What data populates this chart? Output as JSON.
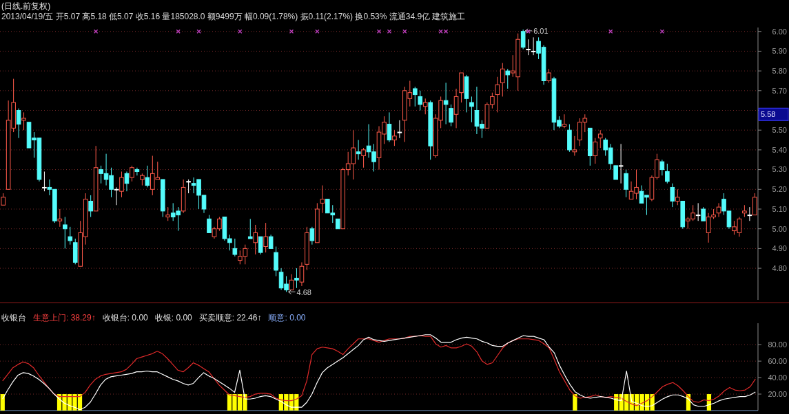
{
  "chart_data": [
    {
      "type": "candlestick",
      "title": "(日线.前复权)",
      "annotations": [
        "2013/04/19/五 开5.07 高5.18 低5.07 收5.16 量185028.0 额9499万 幅0.09(1.78%) 振0.11(2.17%) 换0.53% 流通34.9亿 建筑施工",
        "6.01",
        "4.68",
        "5.58"
      ],
      "categories": [
        null,
        null,
        null,
        null,
        null,
        null,
        null,
        null,
        null,
        null,
        null,
        null,
        null,
        null,
        null,
        null,
        null,
        null,
        null,
        null,
        null,
        null,
        null,
        null,
        null,
        null,
        null,
        null,
        null,
        null,
        null,
        null,
        null,
        null,
        null,
        null,
        null,
        null,
        null,
        null,
        null,
        null,
        null,
        null,
        null,
        null,
        null,
        null,
        null,
        null,
        null,
        null,
        null,
        null,
        null,
        null,
        null,
        null,
        null,
        null,
        null,
        null,
        null,
        null,
        null,
        null,
        null,
        null,
        null,
        null,
        null,
        null,
        null,
        null,
        null,
        null,
        null,
        null,
        null,
        null,
        null,
        null,
        null,
        null,
        null,
        null,
        null,
        null,
        null,
        null,
        null,
        null,
        null,
        null,
        null,
        null,
        null,
        null,
        null,
        null,
        null,
        null,
        null,
        null,
        null,
        null,
        null,
        null,
        null,
        null,
        null,
        null,
        null,
        null,
        null,
        null,
        null,
        null,
        null,
        null,
        null,
        null,
        null,
        null,
        null,
        null,
        null,
        null,
        null,
        null,
        null,
        null,
        null,
        null,
        null,
        null,
        null,
        null,
        null,
        null,
        null,
        null,
        null,
        null,
        null,
        null,
        null
      ],
      "colors": [
        "#ff5a4a",
        "#ff5a4a",
        "#ff5a4a",
        "#54fcfc",
        "#ff5a4a",
        "#54fcfc",
        "#54fcfc",
        "#54fcfc",
        "#ffffff",
        "#54fcfc",
        "#54fcfc",
        "#ff5a4a",
        "#54fcfc",
        "#54fcfc",
        "#54fcfc",
        "#ff5a4a",
        "#ff5a4a",
        "#54fcfc",
        "#ff5a4a",
        "#54fcfc",
        "#54fcfc",
        "#54fcfc",
        "#ffffff",
        "#ff5a4a",
        "#54fcfc",
        "#ff5a4a",
        "#54fcfc",
        "#ff5a4a",
        "#54fcfc",
        "#ff5a4a",
        "#ff5a4a",
        "#54fcfc",
        "#ff5a4a",
        "#54fcfc",
        "#54fcfc",
        "#ff5a4a",
        "#ffffff",
        "#54fcfc",
        "#54fcfc",
        "#54fcfc",
        "#54fcfc",
        "#ff5a4a",
        "#ff5a4a",
        "#54fcfc",
        "#54fcfc",
        "#54fcfc",
        "#ff5a4a",
        "#ff5a4a",
        "#54fcfc",
        "#ff5a4a",
        "#54fcfc",
        "#ff5a4a",
        "#54fcfc",
        "#54fcfc",
        "#54fcfc",
        "#54fcfc",
        "#ff5a4a",
        "#54fcfc",
        "#ff5a4a",
        "#ff5a4a",
        "#54fcfc",
        "#ff5a4a",
        "#ff5a4a",
        "#54fcfc",
        "#54fcfc",
        "#54fcfc",
        "#ff5a4a",
        "#ff5a4a",
        "#ff5a4a",
        "#54fcfc",
        "#ff5a4a",
        "#54fcfc",
        "#54fcfc",
        "#ff5a4a",
        "#ff5a4a",
        "#54fcfc",
        "#ff5a4a",
        "#ffffff",
        "#ff5a4a",
        "#ff5a4a",
        "#54fcfc",
        "#54fcfc",
        "#ff5a4a",
        "#54fcfc",
        "#ff5a4a",
        "#ff5a4a",
        "#54fcfc",
        "#54fcfc",
        "#ff5a4a",
        "#ff5a4a",
        "#54fcfc",
        "#54fcfc",
        "#54fcfc",
        "#54fcfc",
        "#ff5a4a",
        "#ff5a4a",
        "#ff5a4a",
        "#ff5a4a",
        "#54fcfc",
        "#ff5a4a",
        "#ff5a4a",
        "#54fcfc",
        "#ffffff",
        "#ffffff",
        "#54fcfc",
        "#54fcfc",
        "#ff5a4a",
        "#54fcfc",
        "#54fcfc",
        "#ff5a4a",
        "#54fcfc",
        "#ff5a4a",
        "#ff5a4a",
        "#ff5a4a",
        "#54fcfc",
        "#ff5a4a",
        "#ff5a4a",
        "#54fcfc",
        "#54fcfc",
        "#54fcfc",
        "#ffffff",
        "#54fcfc",
        "#ff5a4a",
        "#ff5a4a",
        "#54fcfc",
        "#54fcfc",
        "#ff5a4a",
        "#ff5a4a",
        "#54fcfc",
        "#54fcfc",
        "#54fcfc",
        "#ff5a4a",
        "#54fcfc",
        "#ff5a4a",
        "#ff5a4a",
        "#ffffff",
        "#54fcfc",
        "#ff5a4a",
        "#ff5a4a",
        "#ff5a4a",
        "#54fcfc",
        "#54fcfc",
        "#ff5a4a",
        "#ff5a4a",
        "#ff5a4a",
        "#ffffff",
        "#ff5a4a"
      ],
      "ohlc": [
        [
          5.12,
          5.18,
          5.12,
          5.16
        ],
        [
          5.2,
          5.65,
          5.2,
          5.55
        ],
        [
          5.51,
          5.76,
          5.49,
          5.64
        ],
        [
          5.6,
          5.61,
          5.46,
          5.53
        ],
        [
          5.55,
          5.59,
          5.5,
          5.56
        ],
        [
          5.54,
          5.54,
          5.41,
          5.41
        ],
        [
          5.46,
          5.49,
          5.36,
          5.45
        ],
        [
          5.46,
          5.46,
          5.24,
          5.25
        ],
        [
          5.21,
          5.29,
          5.19,
          5.21
        ],
        [
          5.21,
          5.25,
          5.17,
          5.2
        ],
        [
          5.2,
          5.2,
          5.03,
          5.04
        ],
        [
          5.04,
          5.1,
          5.01,
          5.05
        ],
        [
          5.02,
          5.06,
          4.9,
          5.0
        ],
        [
          4.96,
          5.01,
          4.92,
          4.94
        ],
        [
          4.93,
          4.95,
          4.82,
          4.83
        ],
        [
          4.81,
          5.04,
          4.81,
          4.98
        ],
        [
          4.96,
          5.18,
          4.92,
          5.15
        ],
        [
          5.14,
          5.17,
          5.06,
          5.09
        ],
        [
          5.09,
          5.42,
          5.09,
          5.31
        ],
        [
          5.3,
          5.32,
          5.23,
          5.28
        ],
        [
          5.28,
          5.38,
          5.22,
          5.25
        ],
        [
          5.27,
          5.31,
          5.16,
          5.2
        ],
        [
          5.2,
          5.21,
          5.12,
          5.2
        ],
        [
          5.19,
          5.29,
          5.16,
          5.26
        ],
        [
          5.28,
          5.29,
          5.19,
          5.23
        ],
        [
          5.26,
          5.32,
          5.24,
          5.31
        ],
        [
          5.3,
          5.31,
          5.27,
          5.29
        ],
        [
          5.25,
          5.28,
          5.22,
          5.27
        ],
        [
          5.26,
          5.32,
          5.21,
          5.22
        ],
        [
          5.2,
          5.37,
          5.17,
          5.28
        ],
        [
          5.25,
          5.34,
          5.25,
          5.26
        ],
        [
          5.25,
          5.25,
          5.06,
          5.09
        ],
        [
          5.06,
          5.11,
          5.04,
          5.07
        ],
        [
          5.08,
          5.13,
          5.04,
          5.06
        ],
        [
          5.09,
          5.11,
          4.99,
          5.07
        ],
        [
          5.09,
          5.25,
          5.08,
          5.21
        ],
        [
          5.24,
          5.25,
          5.18,
          5.24
        ],
        [
          5.23,
          5.26,
          5.18,
          5.22
        ],
        [
          5.25,
          5.25,
          5.1,
          5.17
        ],
        [
          5.17,
          5.17,
          5.08,
          5.1
        ],
        [
          5.05,
          5.07,
          4.98,
          4.98
        ],
        [
          4.96,
          5.01,
          4.95,
          5.0
        ],
        [
          5.0,
          5.06,
          4.99,
          5.05
        ],
        [
          5.06,
          5.06,
          4.94,
          4.95
        ],
        [
          4.95,
          4.97,
          4.89,
          4.93
        ],
        [
          4.9,
          4.95,
          4.86,
          4.87
        ],
        [
          4.84,
          4.89,
          4.82,
          4.86
        ],
        [
          4.86,
          4.92,
          4.82,
          4.9
        ],
        [
          4.96,
          5.05,
          4.95,
          4.95
        ],
        [
          4.93,
          5.02,
          4.87,
          4.98
        ],
        [
          4.96,
          4.96,
          4.87,
          4.88
        ],
        [
          4.91,
          5.03,
          4.88,
          4.96
        ],
        [
          4.96,
          4.97,
          4.9,
          4.9
        ],
        [
          4.88,
          4.91,
          4.76,
          4.79
        ],
        [
          4.78,
          4.8,
          4.69,
          4.7
        ],
        [
          4.72,
          4.76,
          4.68,
          4.69
        ],
        [
          4.69,
          4.77,
          4.69,
          4.74
        ],
        [
          4.75,
          4.8,
          4.7,
          4.74
        ],
        [
          4.73,
          4.83,
          4.71,
          4.81
        ],
        [
          4.82,
          5.01,
          4.79,
          4.98
        ],
        [
          5.0,
          5.01,
          4.92,
          4.94
        ],
        [
          4.93,
          5.13,
          4.93,
          5.1
        ],
        [
          5.13,
          5.22,
          5.08,
          5.15
        ],
        [
          5.15,
          5.15,
          5.08,
          5.08
        ],
        [
          5.08,
          5.12,
          5.03,
          5.07
        ],
        [
          5.05,
          5.05,
          5.0,
          5.0
        ],
        [
          5.0,
          5.31,
          5.0,
          5.3
        ],
        [
          5.3,
          5.39,
          5.27,
          5.33
        ],
        [
          5.33,
          5.5,
          5.25,
          5.41
        ],
        [
          5.39,
          5.45,
          5.35,
          5.38
        ],
        [
          5.37,
          5.41,
          5.31,
          5.4
        ],
        [
          5.42,
          5.53,
          5.36,
          5.39
        ],
        [
          5.39,
          5.43,
          5.29,
          5.34
        ],
        [
          5.36,
          5.52,
          5.3,
          5.49
        ],
        [
          5.48,
          5.57,
          5.43,
          5.54
        ],
        [
          5.53,
          5.59,
          5.44,
          5.45
        ],
        [
          5.45,
          5.5,
          5.42,
          5.47
        ],
        [
          5.49,
          5.55,
          5.46,
          5.49
        ],
        [
          5.55,
          5.72,
          5.44,
          5.7
        ],
        [
          5.66,
          5.75,
          5.62,
          5.69
        ],
        [
          5.71,
          5.72,
          5.62,
          5.68
        ],
        [
          5.67,
          5.7,
          5.6,
          5.63
        ],
        [
          5.62,
          5.66,
          5.58,
          5.64
        ],
        [
          5.64,
          5.65,
          5.35,
          5.42
        ],
        [
          5.37,
          5.58,
          5.36,
          5.56
        ],
        [
          5.55,
          5.67,
          5.51,
          5.65
        ],
        [
          5.65,
          5.74,
          5.53,
          5.63
        ],
        [
          5.61,
          5.63,
          5.52,
          5.54
        ],
        [
          5.58,
          5.71,
          5.51,
          5.67
        ],
        [
          5.69,
          5.79,
          5.64,
          5.79
        ],
        [
          5.77,
          5.78,
          5.59,
          5.66
        ],
        [
          5.64,
          5.67,
          5.54,
          5.62
        ],
        [
          5.6,
          5.72,
          5.48,
          5.52
        ],
        [
          5.53,
          5.55,
          5.46,
          5.51
        ],
        [
          5.51,
          5.64,
          5.51,
          5.63
        ],
        [
          5.63,
          5.69,
          5.61,
          5.67
        ],
        [
          5.68,
          5.77,
          5.59,
          5.73
        ],
        [
          5.74,
          5.84,
          5.67,
          5.81
        ],
        [
          5.8,
          5.81,
          5.71,
          5.78
        ],
        [
          5.79,
          5.88,
          5.77,
          5.8
        ],
        [
          5.77,
          5.99,
          5.7,
          5.96
        ],
        [
          6.0,
          6.01,
          5.91,
          5.92
        ],
        [
          5.91,
          5.96,
          5.88,
          5.91
        ],
        [
          5.9,
          5.97,
          5.88,
          5.9
        ],
        [
          5.95,
          5.97,
          5.86,
          5.89
        ],
        [
          5.92,
          5.93,
          5.73,
          5.75
        ],
        [
          5.75,
          5.81,
          5.74,
          5.79
        ],
        [
          5.76,
          5.77,
          5.5,
          5.54
        ],
        [
          5.55,
          5.57,
          5.51,
          5.52
        ],
        [
          5.52,
          5.58,
          5.51,
          5.53
        ],
        [
          5.5,
          5.53,
          5.39,
          5.4
        ],
        [
          5.39,
          5.47,
          5.37,
          5.4
        ],
        [
          5.45,
          5.56,
          5.42,
          5.54
        ],
        [
          5.54,
          5.58,
          5.49,
          5.56
        ],
        [
          5.51,
          5.51,
          5.32,
          5.37
        ],
        [
          5.37,
          5.46,
          5.33,
          5.44
        ],
        [
          5.46,
          5.5,
          5.41,
          5.48
        ],
        [
          5.45,
          5.46,
          5.37,
          5.4
        ],
        [
          5.41,
          5.43,
          5.3,
          5.33
        ],
        [
          5.32,
          5.32,
          5.25,
          5.25
        ],
        [
          5.32,
          5.43,
          5.23,
          5.32
        ],
        [
          5.28,
          5.3,
          5.16,
          5.2
        ],
        [
          5.15,
          5.24,
          5.15,
          5.19
        ],
        [
          5.18,
          5.3,
          5.15,
          5.21
        ],
        [
          5.19,
          5.22,
          5.13,
          5.13
        ],
        [
          5.17,
          5.17,
          5.07,
          5.16
        ],
        [
          5.15,
          5.27,
          5.14,
          5.26
        ],
        [
          5.26,
          5.38,
          5.25,
          5.35
        ],
        [
          5.34,
          5.35,
          5.27,
          5.3
        ],
        [
          5.29,
          5.33,
          5.23,
          5.24
        ],
        [
          5.21,
          5.23,
          5.11,
          5.14
        ],
        [
          5.14,
          5.2,
          5.12,
          5.16
        ],
        [
          5.14,
          5.14,
          5.0,
          5.01
        ],
        [
          5.04,
          5.06,
          5.0,
          5.05
        ],
        [
          5.05,
          5.12,
          5.04,
          5.08
        ],
        [
          5.07,
          5.13,
          5.04,
          5.07
        ],
        [
          5.1,
          5.11,
          5.04,
          5.04
        ],
        [
          4.98,
          5.08,
          4.93,
          5.06
        ],
        [
          5.06,
          5.1,
          5.05,
          5.07
        ],
        [
          5.08,
          5.13,
          5.06,
          5.11
        ],
        [
          5.15,
          5.18,
          5.07,
          5.09
        ],
        [
          5.09,
          5.09,
          5.0,
          5.01
        ],
        [
          4.99,
          5.04,
          4.97,
          5.01
        ],
        [
          4.98,
          5.06,
          4.96,
          5.05
        ],
        [
          5.08,
          5.12,
          5.06,
          5.09
        ],
        [
          5.07,
          5.11,
          5.04,
          5.07
        ],
        [
          5.07,
          5.18,
          5.07,
          5.16
        ]
      ],
      "series": [
        {
          "type": "scatter",
          "color": "#c040c0",
          "marker": "cross",
          "values": [
            null,
            null,
            null,
            null,
            null,
            null,
            null,
            null,
            null,
            null,
            null,
            null,
            null,
            null,
            null,
            null,
            null,
            null,
            6.0,
            null,
            null,
            null,
            null,
            null,
            null,
            null,
            null,
            null,
            null,
            null,
            null,
            null,
            null,
            null,
            6.0,
            null,
            null,
            null,
            6.0,
            null,
            null,
            null,
            null,
            null,
            null,
            null,
            6.0,
            null,
            null,
            null,
            null,
            null,
            null,
            null,
            null,
            null,
            6.0,
            null,
            null,
            null,
            null,
            6.0,
            null,
            null,
            null,
            null,
            null,
            null,
            null,
            null,
            null,
            null,
            null,
            6.0,
            null,
            6.0,
            null,
            null,
            6.0,
            null,
            null,
            null,
            null,
            null,
            null,
            6.0,
            6.0,
            null,
            null,
            null,
            null,
            null,
            null,
            null,
            null,
            null,
            null,
            null,
            null,
            null,
            null,
            null,
            6.0,
            null,
            null,
            null,
            null,
            null,
            null,
            null,
            null,
            null,
            null,
            null,
            null,
            null,
            null,
            null,
            6.0,
            null,
            null,
            null,
            null,
            null,
            null,
            null,
            null,
            null,
            6.0,
            null,
            null,
            null,
            null,
            null,
            null,
            null,
            null,
            null,
            null,
            null,
            null,
            null,
            null,
            null,
            null,
            null,
            null
          ]
        }
      ],
      "ylim": [
        4.64,
        6.02
      ],
      "yticks": [
        {
          "value": 4.8,
          "label": "4.80"
        },
        {
          "value": 4.9,
          "label": "4.90"
        },
        {
          "value": 5.0,
          "label": "5.00"
        },
        {
          "value": 5.1,
          "label": "5.10"
        },
        {
          "value": 5.2,
          "label": "5.20"
        },
        {
          "value": 5.3,
          "label": "5.30"
        },
        {
          "value": 5.4,
          "label": "5.40"
        },
        {
          "value": 5.5,
          "label": "5.50"
        },
        {
          "value": 5.6,
          "label": null
        },
        {
          "value": 5.7,
          "label": "5.70"
        },
        {
          "value": 5.8,
          "label": "5.80"
        },
        {
          "value": 5.9,
          "label": "5.90"
        },
        {
          "value": 6.0,
          "label": "6.00"
        }
      ],
      "grid": "y",
      "tick_labels": "y"
    },
    {
      "type": "line",
      "title": "收银台",
      "annotations": [
        "生意上门: 38.29↑",
        "收银台: 0.00",
        "收银: 0.00",
        "买卖顺意: 22.46↑",
        "顺意: 0.00"
      ],
      "categories": [
        null,
        null,
        null,
        null,
        null,
        null,
        null,
        null,
        null,
        null,
        null,
        null,
        null,
        null,
        null,
        null,
        null,
        null,
        null,
        null,
        null,
        null,
        null,
        null,
        null,
        null,
        null,
        null,
        null,
        null,
        null,
        null,
        null,
        null,
        null,
        null,
        null,
        null,
        null,
        null,
        null,
        null,
        null,
        null,
        null,
        null,
        null,
        null,
        null,
        null,
        null,
        null,
        null,
        null,
        null,
        null,
        null,
        null,
        null,
        null,
        null,
        null,
        null,
        null,
        null,
        null,
        null,
        null,
        null,
        null,
        null,
        null,
        null,
        null,
        null,
        null,
        null,
        null,
        null,
        null,
        null,
        null,
        null,
        null,
        null,
        null,
        null,
        null,
        null,
        null,
        null,
        null,
        null,
        null,
        null,
        null,
        null,
        null,
        null,
        null,
        null,
        null,
        null,
        null,
        null,
        null,
        null,
        null,
        null,
        null,
        null,
        null,
        null,
        null,
        null,
        null,
        null,
        null,
        null,
        null,
        null,
        null,
        null,
        null,
        null,
        null,
        null,
        null,
        null,
        null,
        null,
        null,
        null,
        null,
        null,
        null,
        null,
        null,
        null,
        null,
        null,
        null,
        null,
        null,
        null,
        null,
        null
      ],
      "ylim": [
        0,
        106
      ],
      "yticks": [
        {
          "value": 20,
          "label": "20.00"
        },
        {
          "value": 40,
          "label": "40.00"
        },
        {
          "value": 60,
          "label": "60.00"
        },
        {
          "value": 80,
          "label": "80.00"
        }
      ],
      "grid": "y",
      "tick_labels": "y",
      "series": [
        {
          "type": "bar",
          "color": "#ffff00",
          "values": [
            20,
            null,
            null,
            null,
            null,
            null,
            null,
            null,
            null,
            null,
            null,
            20,
            20,
            20,
            20,
            20,
            null,
            null,
            null,
            null,
            null,
            null,
            null,
            null,
            null,
            null,
            null,
            null,
            null,
            null,
            null,
            null,
            null,
            null,
            null,
            null,
            null,
            null,
            null,
            null,
            null,
            null,
            null,
            null,
            20,
            20,
            20,
            20,
            null,
            null,
            null,
            null,
            null,
            null,
            20,
            20,
            20,
            20,
            null,
            null,
            null,
            null,
            null,
            null,
            null,
            null,
            null,
            null,
            null,
            null,
            null,
            null,
            null,
            null,
            null,
            null,
            null,
            null,
            null,
            null,
            null,
            null,
            null,
            null,
            null,
            null,
            null,
            null,
            null,
            null,
            null,
            null,
            null,
            null,
            null,
            null,
            null,
            null,
            null,
            null,
            null,
            null,
            null,
            null,
            null,
            null,
            null,
            null,
            null,
            null,
            null,
            20,
            null,
            null,
            null,
            null,
            null,
            null,
            null,
            20,
            20,
            20,
            20,
            20,
            20,
            20,
            20,
            null,
            null,
            null,
            null,
            null,
            null,
            20,
            null,
            null,
            null,
            20,
            null,
            null,
            null,
            null,
            null,
            null,
            null,
            null,
            null
          ]
        },
        {
          "type": "line",
          "color": "#e02a2a",
          "values": [
            36,
            44,
            52,
            56,
            59,
            57,
            52,
            43,
            35,
            27,
            20,
            17,
            17,
            17,
            17,
            17,
            22,
            31,
            38,
            42,
            44,
            45,
            46,
            47,
            50,
            56,
            63,
            65,
            67,
            69,
            72,
            69,
            63,
            56,
            49,
            47,
            52,
            58,
            55,
            51,
            47,
            39,
            31,
            25,
            19,
            18,
            17,
            16,
            17,
            20,
            21,
            21,
            20,
            15,
            13,
            12,
            12,
            14,
            18,
            36,
            68,
            75,
            77,
            76,
            75,
            72,
            68,
            75,
            81,
            87,
            87,
            87,
            85,
            83,
            85,
            87,
            87,
            87,
            88,
            90,
            90,
            91,
            90,
            90,
            81,
            77,
            79,
            76,
            76,
            78,
            81,
            78,
            71,
            60,
            56,
            58,
            67,
            76,
            82,
            85,
            87,
            87,
            87,
            86,
            85,
            81,
            76,
            62,
            47,
            36,
            25,
            18,
            15,
            16,
            17,
            19,
            17,
            16,
            17,
            16,
            15,
            11,
            8,
            6,
            9,
            12,
            17,
            23,
            29,
            32,
            34,
            30,
            24,
            17,
            11,
            10,
            13,
            12,
            14,
            18,
            24,
            28,
            25,
            24,
            25,
            29,
            38.29
          ]
        },
        {
          "type": "line",
          "color": "#ffffff",
          "values": [
            14,
            25,
            35,
            43,
            46,
            45,
            42,
            38,
            33,
            27,
            20,
            14,
            9,
            6,
            4,
            1,
            4,
            10,
            20,
            31,
            38,
            41,
            42,
            43,
            44,
            45,
            47,
            47,
            48,
            47,
            47,
            44,
            41,
            38,
            36,
            33,
            31,
            33,
            40,
            46,
            42,
            39,
            35,
            31,
            27,
            22,
            49,
            14,
            14,
            15,
            17,
            18,
            17,
            14,
            11,
            7,
            4,
            4,
            4,
            10,
            20,
            34,
            46,
            52,
            56,
            60,
            64,
            69,
            74,
            79,
            86,
            89,
            86,
            85,
            84,
            85,
            86,
            87,
            88,
            89,
            90,
            91,
            92,
            92,
            88,
            83,
            83,
            83,
            86,
            88,
            89,
            88,
            87,
            84,
            82,
            79,
            78,
            78,
            82,
            85,
            88,
            91,
            90,
            90,
            88,
            86,
            77,
            70,
            55,
            43,
            32,
            23,
            19,
            16,
            15,
            16,
            17,
            16,
            15,
            13,
            12,
            48,
            11,
            9,
            6,
            5,
            6,
            10,
            14,
            17,
            19,
            19,
            17,
            14,
            7,
            5,
            5,
            7,
            9,
            12,
            14,
            15,
            16,
            17,
            17,
            19,
            22.46
          ]
        }
      ]
    }
  ]
}
